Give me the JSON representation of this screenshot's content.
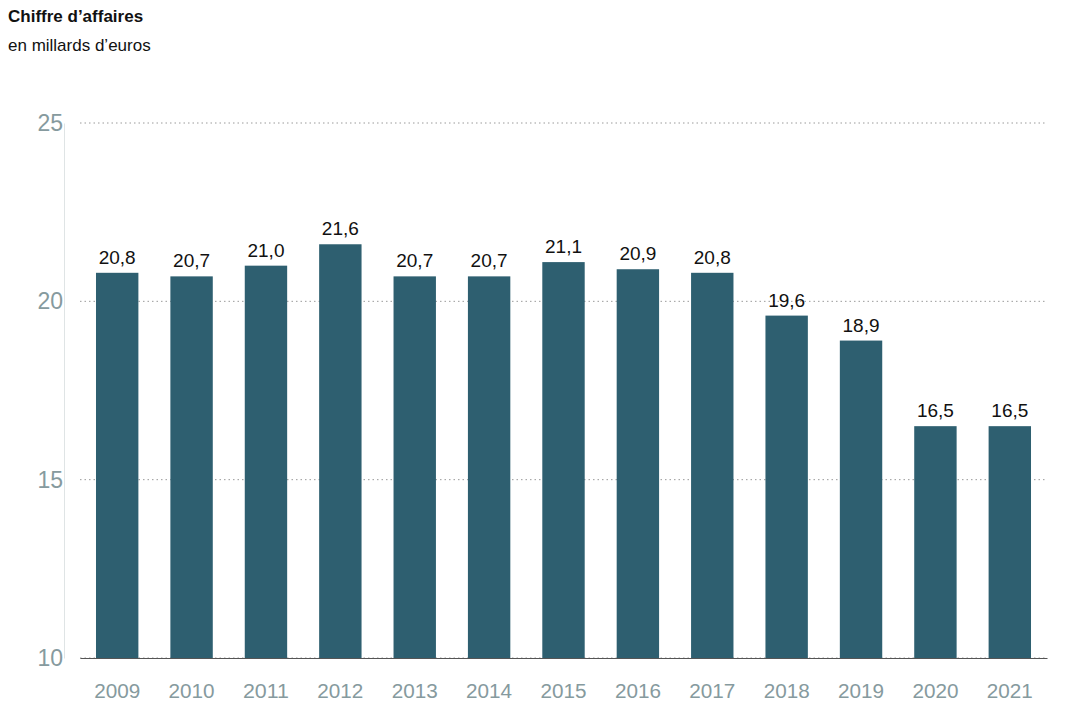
{
  "chart_data": {
    "type": "bar",
    "title": "Chiffre d’affaires",
    "subtitle": "en millards d’euros",
    "categories": [
      "2009",
      "2010",
      "2011",
      "2012",
      "2013",
      "2014",
      "2015",
      "2016",
      "2017",
      "2018",
      "2019",
      "2020",
      "2021"
    ],
    "values": [
      20.8,
      20.7,
      21.0,
      21.6,
      20.7,
      20.7,
      21.1,
      20.9,
      20.8,
      19.6,
      18.9,
      16.5,
      16.5
    ],
    "value_labels": [
      "20,8",
      "20,7",
      "21,0",
      "21,6",
      "20,7",
      "20,7",
      "21,1",
      "20,9",
      "20,8",
      "19,6",
      "18,9",
      "16,5",
      "16,5"
    ],
    "color": "#2e5f70",
    "ylim": [
      10,
      25
    ],
    "yticks": [
      10,
      15,
      20,
      25
    ],
    "grid": true,
    "data_labels": true
  }
}
